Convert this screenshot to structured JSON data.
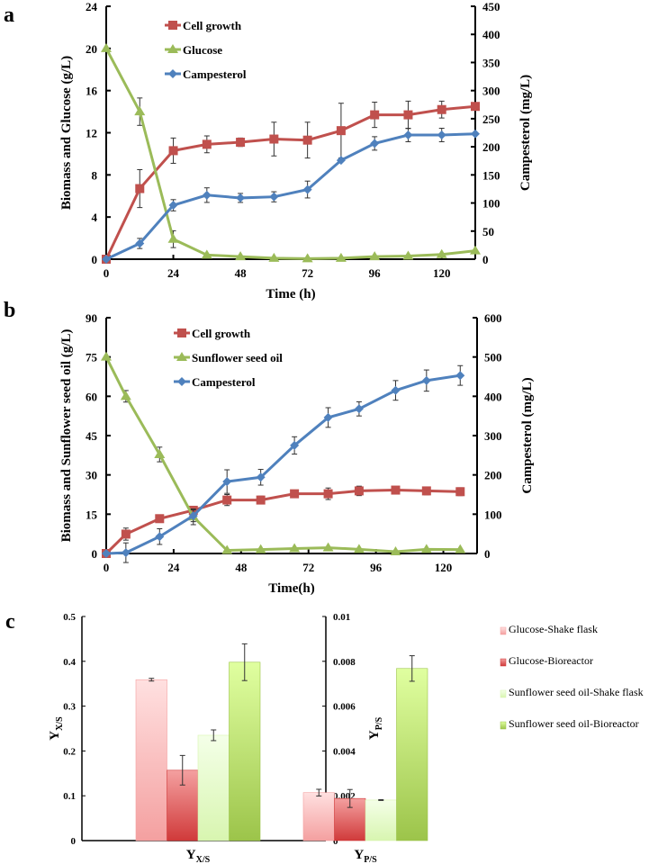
{
  "chart_data": [
    {
      "panel": "a",
      "type": "line",
      "xlabel": "Time (h)",
      "ylabel": "Biomass and Glucose (g/L)",
      "y2label": "Campesterol  (mg/L)",
      "xlim": [
        0,
        132
      ],
      "ylim": [
        0,
        24
      ],
      "y2lim": [
        0,
        450
      ],
      "xticks": [
        0,
        24,
        48,
        72,
        96,
        120
      ],
      "yticks": [
        0,
        4,
        8,
        12,
        16,
        20,
        24
      ],
      "y2ticks": [
        0,
        50,
        100,
        150,
        200,
        250,
        300,
        350,
        400,
        450
      ],
      "legend_position": "top-left",
      "x": [
        0,
        12,
        24,
        36,
        48,
        60,
        72,
        84,
        96,
        108,
        120,
        132
      ],
      "series": [
        {
          "name": "Cell growth",
          "axis": "left",
          "marker": "square",
          "color": "#c0504d",
          "values": [
            0,
            6.7,
            10.3,
            10.9,
            11.1,
            11.4,
            11.3,
            12.2,
            13.7,
            13.7,
            14.2,
            14.5
          ],
          "errors": [
            0,
            1.8,
            1.2,
            0.8,
            0.4,
            1.6,
            1.7,
            2.6,
            1.2,
            1.3,
            0.8,
            0
          ]
        },
        {
          "name": "Glucose",
          "axis": "left",
          "marker": "triangle",
          "color": "#9bbb59",
          "values": [
            20,
            14,
            1.9,
            0.4,
            0.25,
            0.1,
            0.05,
            0.1,
            0.25,
            0.3,
            0.45,
            0.8
          ],
          "errors": [
            0,
            1.3,
            0.8,
            0,
            0,
            0,
            0,
            0,
            0,
            0,
            0,
            0
          ]
        },
        {
          "name": "Campesterol",
          "axis": "right",
          "marker": "diamond",
          "color": "#4f81bd",
          "values": [
            0,
            28,
            96,
            114,
            109,
            111,
            124,
            176,
            206,
            221,
            221,
            223
          ],
          "errors": [
            0,
            9,
            10,
            13,
            8,
            9,
            15,
            0,
            12,
            12,
            12,
            0
          ]
        }
      ]
    },
    {
      "panel": "b",
      "type": "line",
      "xlabel": "Time(h)",
      "ylabel": "Biomass and Sunflower seed oil (g/L)",
      "y2label": "Campesterol (mg/L)",
      "xlim": [
        0,
        132
      ],
      "ylim": [
        0,
        90
      ],
      "y2lim": [
        0,
        600
      ],
      "xticks": [
        0,
        24,
        48,
        72,
        96,
        120
      ],
      "yticks": [
        0,
        15,
        30,
        45,
        60,
        75,
        90
      ],
      "y2ticks": [
        0,
        100,
        200,
        300,
        400,
        500,
        600
      ],
      "legend_position": "top-left",
      "x": [
        0,
        7,
        19,
        31,
        43,
        55,
        67,
        79,
        90,
        103,
        114,
        126
      ],
      "series": [
        {
          "name": "Cell growth",
          "axis": "left",
          "marker": "square",
          "color": "#c0504d",
          "values": [
            0,
            7.4,
            13.3,
            16.5,
            20.4,
            20.4,
            22.8,
            22.8,
            23.9,
            24.2,
            23.9,
            23.6
          ],
          "errors": [
            0,
            2.3,
            1,
            1.5,
            2.1,
            1.5,
            1,
            2.2,
            1.8,
            1.4,
            1.5,
            1.5
          ]
        },
        {
          "name": "Sunflower seed oil",
          "axis": "left",
          "marker": "triangle",
          "color": "#9bbb59",
          "values": [
            75,
            60,
            37.8,
            14,
            1.2,
            1.5,
            1.9,
            2.2,
            1.6,
            0.7,
            1.6,
            1.5
          ],
          "errors": [
            0,
            2.2,
            2.8,
            3,
            0,
            0,
            0,
            0,
            0,
            0,
            0,
            0
          ]
        },
        {
          "name": "Campesterol",
          "axis": "right",
          "marker": "diamond",
          "color": "#4f81bd",
          "values": [
            0,
            2,
            43,
            96,
            183,
            194,
            275,
            346,
            368,
            415,
            440,
            453
          ],
          "errors": [
            0,
            25,
            20,
            15,
            30,
            20,
            22,
            25,
            18,
            25,
            27,
            25
          ]
        }
      ]
    },
    {
      "panel": "c",
      "type": "bar",
      "categories": [
        {
          "main": "Y",
          "sub": "X/S"
        },
        {
          "main": "Y",
          "sub": "P/S"
        }
      ],
      "ylabel": {
        "main": "Y",
        "sub": "X/S"
      },
      "y2label": {
        "main": "Y",
        "sub": "P/S"
      },
      "ylim": [
        0,
        0.5
      ],
      "y2lim": [
        0,
        0.01
      ],
      "yticks": [
        "0",
        "0.1",
        "0.2",
        "0.3",
        "0.4",
        "0.5"
      ],
      "y2ticks": [
        "0",
        "0.002",
        "0.004",
        "0.006",
        "0.008",
        "0.01"
      ],
      "legend_position": "right",
      "series": [
        {
          "name": "Glucose-Shake flask",
          "color_top": "#ffe0e0",
          "color_bottom": "#f4a0a0",
          "values": [
            0.359,
            0.00214
          ],
          "errors": [
            0.003,
            0.00015
          ]
        },
        {
          "name": "Glucose-Bioreactor",
          "color_top": "#f4a0a0",
          "color_bottom": "#d03a3a",
          "values": [
            0.157,
            0.00188
          ],
          "errors": [
            0.033,
            0.0004
          ]
        },
        {
          "name": "Sunflower seed oil-Shake flask",
          "color_top": "#f4ffe8",
          "color_bottom": "#d8f5b0",
          "values": [
            0.235,
            0.00181
          ],
          "errors": [
            0.012,
            2e-05
          ]
        },
        {
          "name": "Sunflower seed oil-Bioreactor",
          "color_top": "#e0ffa0",
          "color_bottom": "#9cc44a",
          "values": [
            0.398,
            0.00768
          ],
          "errors": [
            0.041,
            0.00057
          ]
        }
      ]
    }
  ]
}
